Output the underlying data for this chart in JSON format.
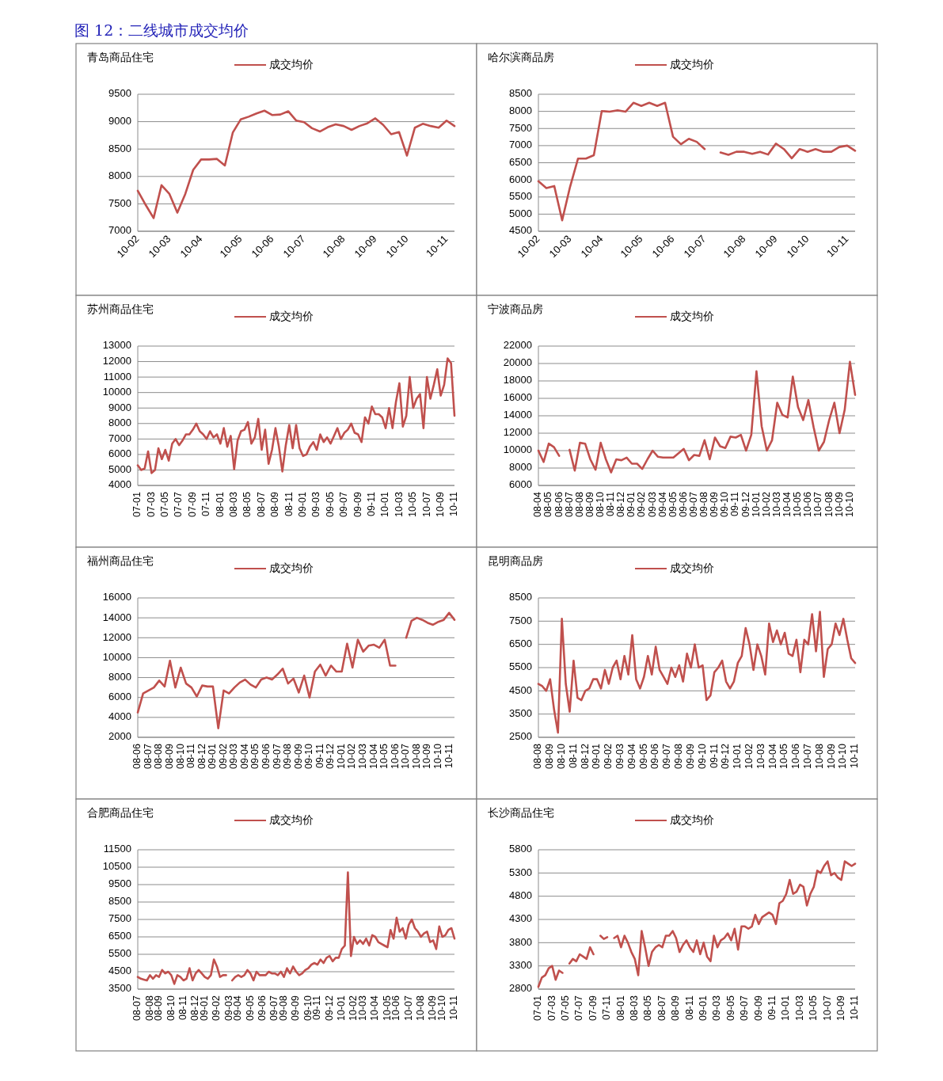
{
  "chart_data": [
    {
      "type": "line",
      "title": "青岛商品住宅",
      "annotations": [
        "图 12：二线城市成交均价"
      ],
      "legend": "top",
      "grid": "y",
      "ylim": [
        7000,
        9500
      ],
      "yticks": [
        7000,
        7500,
        8000,
        8500,
        9000,
        9500
      ],
      "categories": [
        "10-02",
        null,
        null,
        null,
        "10-03",
        null,
        null,
        null,
        "10-04",
        null,
        null,
        null,
        null,
        "10-05",
        null,
        null,
        null,
        "10-06",
        null,
        null,
        null,
        "10-07",
        null,
        null,
        null,
        null,
        "10-08",
        null,
        null,
        null,
        "10-09",
        null,
        null,
        null,
        "10-10",
        null,
        null,
        null,
        null,
        "10-11",
        null
      ],
      "series": [
        {
          "name": "成交均价",
          "color": "#c0504d",
          "values": [
            7740,
            7480,
            7240,
            7840,
            7680,
            7340,
            7680,
            8120,
            8310,
            8310,
            8320,
            8200,
            8800,
            9040,
            9090,
            9150,
            9200,
            9120,
            9130,
            9190,
            9020,
            8990,
            8880,
            8820,
            8900,
            8950,
            8920,
            8850,
            8920,
            8970,
            9060,
            8940,
            8770,
            8810,
            8380,
            8890,
            8960,
            8920,
            8890,
            9020,
            8920
          ]
        }
      ]
    },
    {
      "type": "line",
      "title": "哈尔滨商品房",
      "legend": "top",
      "grid": "y",
      "ylim": [
        4500,
        8500
      ],
      "yticks": [
        4500,
        5000,
        5500,
        6000,
        6500,
        7000,
        7500,
        8000,
        8500
      ],
      "categories": [
        "10-02",
        null,
        null,
        null,
        "10-03",
        null,
        null,
        null,
        "10-04",
        null,
        null,
        null,
        null,
        "10-05",
        null,
        null,
        null,
        "10-06",
        null,
        null,
        null,
        "10-07",
        null,
        null,
        null,
        null,
        "10-08",
        null,
        null,
        null,
        "10-09",
        null,
        null,
        null,
        "10-10",
        null,
        null,
        null,
        null,
        "10-11",
        null
      ],
      "series": [
        {
          "name": "成交均价",
          "color": "#c0504d",
          "values": [
            5960,
            5760,
            5820,
            4820,
            5800,
            6620,
            6620,
            6720,
            8010,
            7990,
            8030,
            7990,
            8250,
            8160,
            8250,
            8160,
            8250,
            7260,
            7040,
            7200,
            7110,
            6900,
            null,
            6800,
            6730,
            6820,
            6820,
            6760,
            6820,
            6740,
            7060,
            6900,
            6630,
            6900,
            6820,
            6900,
            6820,
            6820,
            6960,
            7000,
            6850
          ]
        }
      ]
    },
    {
      "type": "line",
      "title": "苏州商品住宅",
      "legend": "top",
      "grid": "y",
      "ylim": [
        4000,
        13000
      ],
      "yticks": [
        4000,
        5000,
        6000,
        7000,
        8000,
        9000,
        10000,
        11000,
        12000,
        13000
      ],
      "categories": [
        "07-01",
        null,
        null,
        null,
        "07-03",
        null,
        null,
        null,
        "07-05",
        null,
        null,
        null,
        "07-07",
        null,
        null,
        null,
        "07-09",
        null,
        null,
        null,
        "07-11",
        null,
        null,
        null,
        "08-01",
        null,
        null,
        null,
        "08-03",
        null,
        null,
        null,
        "08-05",
        null,
        null,
        null,
        "08-07",
        null,
        null,
        null,
        "08-09",
        null,
        null,
        null,
        "08-11",
        null,
        null,
        null,
        "09-01",
        null,
        null,
        null,
        "09-03",
        null,
        null,
        null,
        "09-05",
        null,
        null,
        null,
        "09-07",
        null,
        null,
        null,
        "09-09",
        null,
        null,
        null,
        "09-11",
        null,
        null,
        null,
        "10-01",
        null,
        null,
        null,
        "10-03",
        null,
        null,
        null,
        "10-05",
        null,
        null,
        null,
        "10-07",
        null,
        null,
        null,
        "10-09",
        null,
        null,
        null,
        "10-11"
      ],
      "series": [
        {
          "name": "成交均价",
          "color": "#c0504d",
          "values": [
            5300,
            5000,
            5100,
            6200,
            4800,
            5000,
            6400,
            5700,
            6300,
            5600,
            6700,
            7000,
            6600,
            6900,
            7300,
            7300,
            7600,
            8000,
            7500,
            7300,
            7000,
            7500,
            7100,
            7300,
            6700,
            7700,
            6500,
            7200,
            5050,
            6900,
            7500,
            7600,
            8100,
            6700,
            7100,
            8300,
            6300,
            7600,
            5400,
            6300,
            7700,
            6500,
            4900,
            6600,
            7900,
            6400,
            7900,
            6400,
            5900,
            6000,
            6500,
            6800,
            6300,
            7300,
            6800,
            7100,
            6700,
            7200,
            7700,
            7000,
            7400,
            7600,
            8000,
            7400,
            7300,
            6800,
            8400,
            8000,
            9100,
            8600,
            8600,
            8400,
            7700,
            9000,
            7700,
            9400,
            10600,
            7800,
            8500,
            11000,
            9000,
            9600,
            9900,
            7700,
            11000,
            9600,
            10500,
            11500,
            9800,
            10500,
            12200,
            11900,
            8500
          ]
        }
      ]
    },
    {
      "type": "line",
      "title": "宁波商品房",
      "legend": "top",
      "grid": "y",
      "ylim": [
        6000,
        22000
      ],
      "yticks": [
        6000,
        8000,
        10000,
        12000,
        14000,
        16000,
        18000,
        20000,
        22000
      ],
      "categories": [
        "08-04",
        null,
        "08-05",
        null,
        "08-06",
        null,
        "08-07",
        null,
        "08-08",
        null,
        "08-09",
        null,
        "08-10",
        null,
        "08-11",
        null,
        "08-12",
        null,
        "09-01",
        null,
        "09-02",
        null,
        "09-03",
        null,
        "09-04",
        null,
        "09-05",
        null,
        "09-06",
        null,
        "09-07",
        null,
        "09-08",
        null,
        "09-09",
        null,
        "09-10",
        null,
        "09-11",
        null,
        "09-12",
        null,
        "10-01",
        null,
        "10-02",
        null,
        "10-03",
        null,
        "10-04",
        null,
        "10-05",
        null,
        "10-06",
        null,
        "10-07",
        null,
        "10-08",
        null,
        "10-09",
        null,
        "10-10",
        null
      ],
      "series": [
        {
          "name": "成交均价",
          "color": "#c0504d",
          "values": [
            10000,
            8700,
            10800,
            10400,
            9400,
            null,
            10100,
            7700,
            10900,
            10800,
            9000,
            7800,
            10900,
            9000,
            7500,
            9000,
            8900,
            9200,
            8500,
            8500,
            7900,
            9000,
            10000,
            9300,
            9200,
            9200,
            9200,
            9700,
            10200,
            8900,
            9500,
            9400,
            11200,
            9000,
            11500,
            10500,
            10300,
            11600,
            11500,
            11800,
            10000,
            11800,
            19100,
            12800,
            10000,
            11200,
            15500,
            14100,
            13800,
            18500,
            15000,
            13500,
            15800,
            12700,
            10000,
            11000,
            13500,
            15500,
            12000,
            14700,
            20200,
            16400
          ]
        }
      ]
    },
    {
      "type": "line",
      "title": "福州商品住宅",
      "legend": "top",
      "grid": "y",
      "ylim": [
        2000,
        16000
      ],
      "yticks": [
        2000,
        4000,
        6000,
        8000,
        10000,
        12000,
        14000,
        16000
      ],
      "categories": [
        "08-06",
        null,
        "08-07",
        null,
        "08-08",
        null,
        "08-09",
        null,
        "08-10",
        null,
        "08-11",
        null,
        "08-12",
        null,
        "09-01",
        null,
        "09-02",
        null,
        "09-03",
        null,
        "09-04",
        null,
        "09-05",
        null,
        "09-06",
        null,
        "09-07",
        null,
        "09-08",
        null,
        "09-09",
        null,
        "09-10",
        null,
        "09-11",
        null,
        "09-12",
        null,
        "10-01",
        null,
        "10-02",
        null,
        "10-03",
        null,
        "10-04",
        null,
        "10-05",
        null,
        "10-06",
        null,
        "10-07",
        null,
        "10-08",
        null,
        "10-09",
        null,
        "10-10",
        null,
        "10-11",
        null
      ],
      "series": [
        {
          "name": "成交均价",
          "color": "#c0504d",
          "values": [
            4500,
            6400,
            6700,
            7000,
            7700,
            7100,
            9700,
            7000,
            9000,
            7400,
            7000,
            6100,
            7200,
            7100,
            7100,
            2900,
            6700,
            6400,
            7000,
            7500,
            7800,
            7300,
            7000,
            7800,
            8000,
            7800,
            8300,
            8900,
            7400,
            7900,
            6500,
            8200,
            6000,
            8600,
            9300,
            8200,
            9200,
            8600,
            8600,
            11400,
            9000,
            11800,
            10600,
            11200,
            11300,
            11000,
            11800,
            9200,
            9200,
            null,
            12000,
            13700,
            14000,
            13800,
            13500,
            13300,
            13600,
            13800,
            14500,
            13800
          ]
        }
      ]
    },
    {
      "type": "line",
      "title": "昆明商品房",
      "legend": "top",
      "grid": "y",
      "ylim": [
        2500,
        8500
      ],
      "yticks": [
        2500,
        3500,
        4500,
        5500,
        6500,
        7500,
        8500
      ],
      "categories": [
        "08-08",
        null,
        null,
        "08-09",
        null,
        null,
        "08-10",
        null,
        null,
        "08-11",
        null,
        null,
        "08-12",
        null,
        null,
        "09-01",
        null,
        null,
        "09-02",
        null,
        null,
        "09-03",
        null,
        null,
        "09-04",
        null,
        null,
        "09-05",
        null,
        null,
        "09-06",
        null,
        null,
        "09-07",
        null,
        null,
        "09-08",
        null,
        null,
        "09-09",
        null,
        null,
        "09-10",
        null,
        null,
        "09-11",
        null,
        null,
        "09-12",
        null,
        null,
        "10-01",
        null,
        null,
        "10-02",
        null,
        null,
        "10-03",
        null,
        null,
        "10-04",
        null,
        null,
        "10-05",
        null,
        null,
        "10-06",
        null,
        null,
        "10-07",
        null,
        null,
        "10-08",
        null,
        null,
        "10-09",
        null,
        null,
        "10-10",
        null,
        null,
        "10-11"
      ],
      "series": [
        {
          "name": "成交均价",
          "color": "#c0504d",
          "values": [
            4800,
            4700,
            4500,
            5000,
            3700,
            2700,
            7600,
            4800,
            3600,
            5800,
            4200,
            4100,
            4500,
            4600,
            5000,
            5000,
            4600,
            5400,
            4800,
            5500,
            5800,
            5000,
            6000,
            5200,
            6900,
            5000,
            4600,
            5100,
            6000,
            5200,
            6400,
            5400,
            5100,
            4800,
            5500,
            5100,
            5600,
            4900,
            6100,
            5500,
            6500,
            5500,
            5600,
            4100,
            4300,
            5300,
            5500,
            5800,
            4900,
            4600,
            4900,
            5700,
            6000,
            7200,
            6500,
            5400,
            6500,
            6000,
            5200,
            7400,
            6600,
            7100,
            6500,
            7000,
            6100,
            6000,
            6700,
            5300,
            6700,
            6500,
            7800,
            6200,
            7900,
            5100,
            6300,
            6500,
            7400,
            6900,
            7600,
            6700,
            5900,
            5700
          ]
        }
      ]
    },
    {
      "type": "line",
      "title": "合肥商品住宅",
      "legend": "top",
      "grid": "y",
      "ylim": [
        3500,
        11500
      ],
      "yticks": [
        3500,
        4500,
        5500,
        6500,
        7500,
        8500,
        9500,
        10500,
        11500
      ],
      "categories": [
        "08-07",
        null,
        null,
        null,
        "08-08",
        null,
        null,
        "08-09",
        null,
        null,
        null,
        "08-10",
        null,
        null,
        null,
        "08-11",
        null,
        null,
        null,
        "08-12",
        null,
        null,
        "09-01",
        null,
        null,
        null,
        "09-02",
        null,
        null,
        null,
        "09-03",
        null,
        null,
        "09-04",
        null,
        null,
        null,
        "09-05",
        null,
        null,
        null,
        "09-06",
        null,
        null,
        null,
        "09-07",
        null,
        null,
        "09-08",
        null,
        null,
        null,
        "09-09",
        null,
        null,
        null,
        "09-10",
        null,
        null,
        "09-11",
        null,
        null,
        null,
        "09-12",
        null,
        null,
        null,
        "10-01",
        null,
        null,
        null,
        "10-02",
        null,
        null,
        "10-03",
        null,
        null,
        null,
        "10-04",
        null,
        null,
        null,
        "10-05",
        null,
        null,
        "10-06",
        null,
        null,
        null,
        "10-07",
        null,
        null,
        null,
        "10-08",
        null,
        null,
        null,
        "10-09",
        null,
        null,
        "10-10",
        null,
        null,
        null,
        "10-11"
      ],
      "series": [
        {
          "name": "成交均价",
          "color": "#c0504d",
          "values": [
            4200,
            4100,
            4050,
            4000,
            4300,
            4100,
            4300,
            4200,
            4600,
            4400,
            4500,
            4300,
            3800,
            4300,
            4200,
            4000,
            4100,
            4700,
            4000,
            4400,
            4600,
            4400,
            4200,
            4100,
            4300,
            5200,
            4800,
            4200,
            4300,
            4300,
            null,
            4000,
            4200,
            4300,
            4200,
            4300,
            4600,
            4400,
            4000,
            4500,
            4300,
            4300,
            4300,
            4500,
            4400,
            4400,
            4300,
            4500,
            4200,
            4700,
            4400,
            4800,
            4500,
            4300,
            4400,
            4600,
            4700,
            4900,
            5000,
            4900,
            5200,
            5000,
            5300,
            5400,
            5100,
            5300,
            5300,
            5800,
            6000,
            10200,
            5400,
            6500,
            6100,
            6300,
            6100,
            6400,
            6000,
            6600,
            6500,
            6200,
            6100,
            6000,
            5900,
            6900,
            6400,
            7600,
            6800,
            7000,
            6400,
            7200,
            7500,
            7000,
            6800,
            6500,
            6700,
            6800,
            6200,
            6300,
            5800,
            7100,
            6500,
            6600,
            6900,
            7000,
            6400
          ]
        }
      ]
    },
    {
      "type": "line",
      "title": "长沙商品住宅",
      "legend": "top",
      "grid": "y",
      "ylim": [
        2800,
        5800
      ],
      "yticks": [
        2800,
        3300,
        3800,
        4300,
        4800,
        5300,
        5800
      ],
      "categories": [
        "07-01",
        null,
        null,
        null,
        "07-03",
        null,
        null,
        null,
        "07-05",
        null,
        null,
        null,
        "07-07",
        null,
        null,
        null,
        "07-09",
        null,
        null,
        null,
        "07-11",
        null,
        null,
        null,
        "08-01",
        null,
        null,
        null,
        "08-03",
        null,
        null,
        null,
        "08-05",
        null,
        null,
        null,
        "08-07",
        null,
        null,
        null,
        "08-09",
        null,
        null,
        null,
        "08-11",
        null,
        null,
        null,
        "09-01",
        null,
        null,
        null,
        "09-03",
        null,
        null,
        null,
        "09-05",
        null,
        null,
        null,
        "09-07",
        null,
        null,
        null,
        "09-09",
        null,
        null,
        null,
        "09-11",
        null,
        null,
        null,
        "10-01",
        null,
        null,
        null,
        "10-03",
        null,
        null,
        null,
        "10-05",
        null,
        null,
        null,
        "10-07",
        null,
        null,
        null,
        "10-09",
        null,
        null,
        null,
        "10-11"
      ],
      "series": [
        {
          "name": "成交均价",
          "color": "#c0504d",
          "values": [
            2850,
            3050,
            3100,
            3250,
            3300,
            3000,
            3200,
            3150,
            null,
            3350,
            3450,
            3400,
            3550,
            3500,
            3450,
            3700,
            3550,
            null,
            3950,
            3880,
            3920,
            null,
            3900,
            3950,
            3700,
            3950,
            3800,
            3600,
            3450,
            3100,
            4050,
            3700,
            3300,
            3600,
            3700,
            3750,
            3700,
            3950,
            3950,
            4050,
            3900,
            3600,
            3750,
            3850,
            3700,
            3600,
            3850,
            3550,
            3800,
            3500,
            3400,
            3950,
            3700,
            3850,
            3900,
            4000,
            3850,
            4100,
            3650,
            4150,
            4150,
            4100,
            4150,
            4400,
            4200,
            4350,
            4400,
            4450,
            4400,
            4200,
            4650,
            4700,
            4850,
            5150,
            4850,
            4900,
            5050,
            5000,
            4600,
            4850,
            5000,
            5350,
            5300,
            5450,
            5550,
            5250,
            5300,
            5200,
            5150,
            5550,
            5500,
            5450,
            5500
          ]
        }
      ]
    }
  ]
}
